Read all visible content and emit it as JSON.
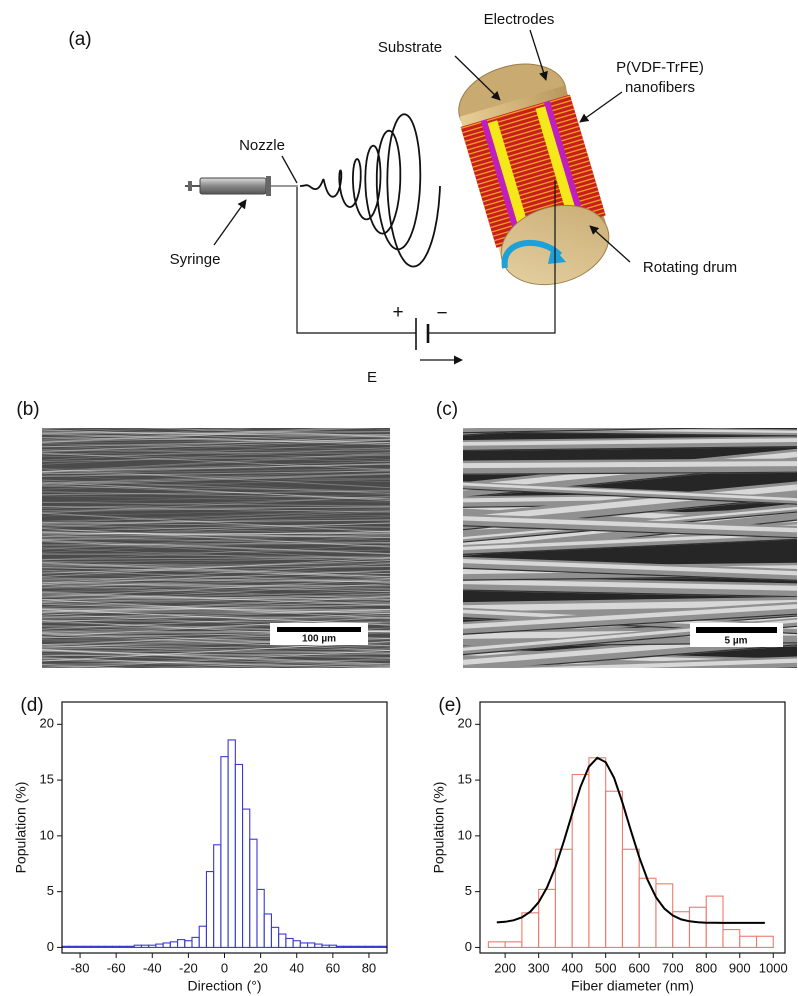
{
  "figure": {
    "panels": [
      "(a)",
      "(b)",
      "(c)"
    ],
    "schematic": {
      "electrodes": "Electrodes",
      "substrate": "Substrate",
      "nanofibers": [
        "P(VDF-TrFE)",
        "nanofibers"
      ],
      "nozzle": "Nozzle",
      "syringe": "Syringe",
      "drum": "Rotating drum",
      "plus": "+",
      "minus": "−",
      "field": "E"
    },
    "scale_bars": [
      "100 µm",
      "5 µm"
    ]
  },
  "chart_data": [
    {
      "type": "histogram",
      "panel_label": "(d)",
      "x_label": "Direction (°)",
      "y_label": "Population (%)",
      "color": "#3a3ad0",
      "bins": [
        -90,
        -86,
        -82,
        -78,
        -74,
        -70,
        -66,
        -62,
        -58,
        -54,
        -50,
        -46,
        -42,
        -38,
        -34,
        -30,
        -26,
        -22,
        -18,
        -14,
        -10,
        -6,
        -2,
        2,
        6,
        10,
        14,
        18,
        22,
        26,
        30,
        34,
        38,
        42,
        46,
        50,
        54,
        58,
        62,
        66,
        70,
        74,
        78,
        82,
        86,
        90
      ],
      "values": [
        0.1,
        0.1,
        0.1,
        0.1,
        0.1,
        0.1,
        0.1,
        0.1,
        0.1,
        0.1,
        0.2,
        0.2,
        0.2,
        0.3,
        0.4,
        0.5,
        0.7,
        0.6,
        0.9,
        1.9,
        6.8,
        9.2,
        17.1,
        18.6,
        16.4,
        12.4,
        9.7,
        5.2,
        3.0,
        1.8,
        1.2,
        0.8,
        0.6,
        0.4,
        0.4,
        0.3,
        0.2,
        0.2,
        0.1,
        0.1,
        0.1,
        0.1,
        0.1,
        0.1,
        0.1
      ],
      "xlim": [
        -90,
        90
      ],
      "xticks": [
        -80,
        -60,
        -40,
        -20,
        0,
        20,
        40,
        60,
        80
      ],
      "ylim": [
        -0.5,
        22
      ],
      "yticks": [
        0,
        5,
        10,
        15,
        20
      ]
    },
    {
      "type": "histogram",
      "panel_label": "(e)",
      "x_label": "Fiber diameter (nm)",
      "y_label": "Population (%)",
      "color": "#ee7a6e",
      "bins": [
        150,
        200,
        250,
        300,
        350,
        400,
        450,
        500,
        550,
        600,
        650,
        700,
        750,
        800,
        850,
        900,
        950,
        1000
      ],
      "values": [
        0.5,
        0.5,
        3.1,
        5.2,
        8.8,
        15.5,
        17.0,
        14.0,
        8.8,
        6.2,
        5.7,
        3.2,
        3.6,
        4.6,
        1.6,
        1.0,
        1.0
      ],
      "fit": {
        "color": "#000000",
        "x": [
          175,
          200,
          225,
          250,
          275,
          300,
          325,
          350,
          375,
          400,
          425,
          450,
          475,
          500,
          525,
          550,
          575,
          600,
          625,
          650,
          675,
          700,
          725,
          750,
          775,
          800,
          825,
          850,
          875,
          900,
          925,
          950,
          975
        ],
        "values": [
          2.24,
          2.3,
          2.43,
          2.7,
          3.2,
          4.05,
          5.37,
          7.2,
          9.5,
          12.0,
          14.4,
          16.2,
          17.0,
          16.6,
          15.2,
          13.0,
          10.5,
          8.1,
          6.05,
          4.5,
          3.49,
          2.87,
          2.51,
          2.34,
          2.25,
          2.22,
          2.21,
          2.2,
          2.2,
          2.2,
          2.2,
          2.2,
          2.2
        ]
      },
      "xlim": [
        125,
        1035
      ],
      "xticks": [
        200,
        300,
        400,
        500,
        600,
        700,
        800,
        900,
        1000
      ],
      "ylim": [
        -0.5,
        22
      ],
      "yticks": [
        0,
        5,
        10,
        15,
        20
      ]
    }
  ]
}
